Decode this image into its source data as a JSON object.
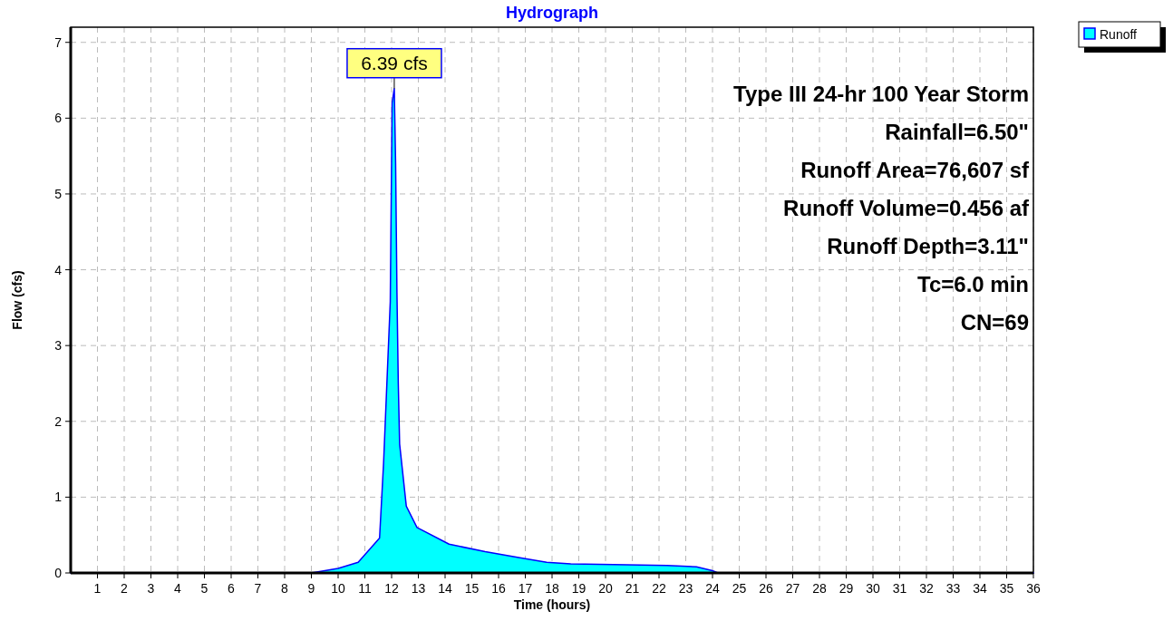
{
  "chart_data": {
    "type": "area",
    "title": "Hydrograph",
    "xlabel": "Time  (hours)",
    "ylabel": "Flow  (cfs)",
    "x": [
      0,
      9,
      10,
      10.75,
      11.55,
      11.7,
      11.95,
      12.02,
      12.1,
      12.15,
      12.2,
      12.25,
      12.3,
      12.55,
      12.95,
      14.15,
      15.5,
      16.8,
      17.8,
      18.7,
      20.3,
      22.3,
      23.4,
      24.0,
      24.2,
      36
    ],
    "series": [
      {
        "name": "Runoff",
        "color": "#00ffff",
        "values": [
          0,
          0,
          0.06,
          0.14,
          0.46,
          1.45,
          3.58,
          6.2,
          6.39,
          5.4,
          3.7,
          2.5,
          1.7,
          0.88,
          0.6,
          0.38,
          0.28,
          0.2,
          0.14,
          0.12,
          0.11,
          0.1,
          0.08,
          0.03,
          0,
          0
        ]
      }
    ],
    "xlim": [
      0,
      36
    ],
    "ylim": [
      0,
      7.2
    ],
    "xticks": [
      1,
      2,
      3,
      4,
      5,
      6,
      7,
      8,
      9,
      10,
      11,
      12,
      13,
      14,
      15,
      16,
      17,
      18,
      19,
      20,
      21,
      22,
      23,
      24,
      25,
      26,
      27,
      28,
      29,
      30,
      31,
      32,
      33,
      34,
      35,
      36
    ],
    "yticks": [
      0,
      1,
      2,
      3,
      4,
      5,
      6,
      7
    ],
    "grid": true,
    "legend": "top right",
    "annotations": [
      {
        "text": "6.39 cfs",
        "x": 12.1,
        "y": 6.39
      },
      "Type III 24-hr 100 Year Storm",
      "Rainfall=6.50\"",
      "Runoff Area=76,607 sf",
      "Runoff Volume=0.456 af",
      "Runoff Depth=3.11\"",
      "Tc=6.0 min",
      "CN=69"
    ]
  }
}
